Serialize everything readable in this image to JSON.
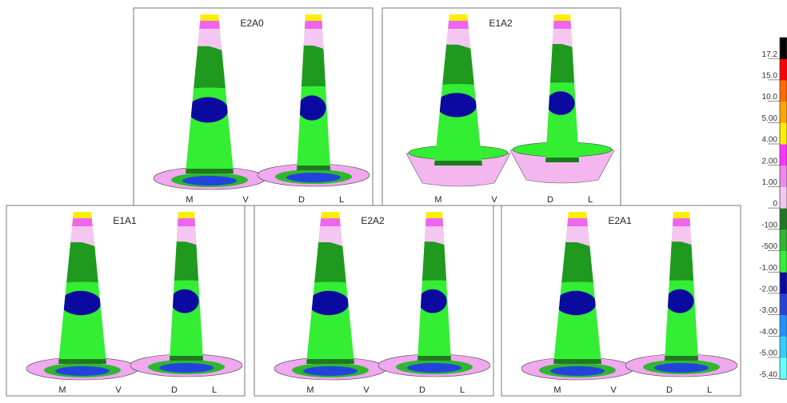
{
  "panels": [
    {
      "title": "E2A0",
      "labels": [
        "M",
        "V",
        "D",
        "L"
      ]
    },
    {
      "title": "E1A2",
      "labels": [
        "M",
        "V",
        "D",
        "L"
      ]
    },
    {
      "title": "E1A1",
      "labels": [
        "M",
        "V",
        "D",
        "L"
      ]
    },
    {
      "title": "E2A2",
      "labels": [
        "M",
        "V",
        "D",
        "L"
      ]
    },
    {
      "title": "E2A1",
      "labels": [
        "M",
        "V",
        "D",
        "L"
      ]
    }
  ],
  "legend": {
    "labels": [
      "17.2",
      "15.0",
      "10.0",
      "5.00",
      "4.00",
      "2.00",
      "1.00",
      "0",
      "-100",
      "-500",
      "-1.00",
      "-2.00",
      "-3.00",
      "-4.00",
      "-5.00",
      "-5.40"
    ],
    "colors": [
      "#000000",
      "#ff0000",
      "#ff6a00",
      "#ffa500",
      "#ffee00",
      "#ff33ff",
      "#ee88ee",
      "#f6c6f2",
      "#1f7a1f",
      "#2fb82f",
      "#33ee33",
      "#0a0aa0",
      "#2244dd",
      "#1e90ff",
      "#33ccff",
      "#66ffff"
    ]
  }
}
